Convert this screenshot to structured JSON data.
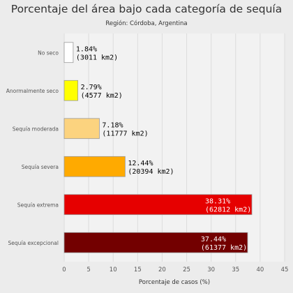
{
  "chart_data": {
    "type": "bar",
    "orientation": "horizontal",
    "title": "Porcentaje del área bajo cada categoría de sequía",
    "subtitle": "Región: Córdoba, Argentina",
    "xlabel": "Porcentaje de casos (%)",
    "ylabel": "",
    "xlim": [
      0,
      45
    ],
    "xticks": [
      0,
      5,
      10,
      15,
      20,
      25,
      30,
      35,
      40,
      45
    ],
    "grid": true,
    "legend": "none",
    "categories": [
      "No seco",
      "Anormalmente seco",
      "Sequía moderada",
      "Sequía severa",
      "Sequía extrema",
      "Sequía excepcional"
    ],
    "values": [
      1.84,
      2.79,
      7.18,
      12.44,
      38.31,
      37.44
    ],
    "labels": [
      [
        "1.84%",
        "(3011 km2)"
      ],
      [
        "2.79%",
        "(4577 km2)"
      ],
      [
        "7.18%",
        "(11777 km2)"
      ],
      [
        "12.44%",
        "(20394 km2)"
      ],
      [
        "38.31%",
        "(62812 km2)"
      ],
      [
        "37.44%",
        "(61377 km2)"
      ]
    ],
    "colors": [
      "#ffffff",
      "#ffff00",
      "#fcd37f",
      "#ffaa00",
      "#e60000",
      "#730000"
    ],
    "label_colors": [
      "#000000",
      "#000000",
      "#000000",
      "#000000",
      "#ffffff",
      "#ffffff"
    ],
    "label_inside": [
      false,
      false,
      false,
      false,
      true,
      true
    ]
  }
}
